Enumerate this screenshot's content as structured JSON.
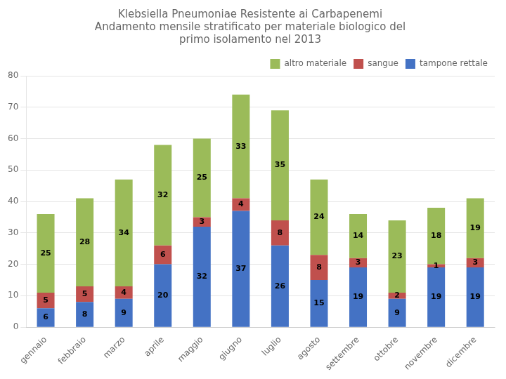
{
  "chart_data": {
    "type": "bar",
    "title": "Klebsiella Pneumoniae Resistente ai Carbapenemi\nAndamento mensile stratificato per materiale biologico del\nprimo isolamento nel 2013",
    "categories": [
      "gennaio",
      "febbraio",
      "marzo",
      "aprile",
      "maggio",
      "giugno",
      "luglio",
      "agosto",
      "settembre",
      "ottobre",
      "novembre",
      "dicembre"
    ],
    "series": [
      {
        "name": "tampone rettale",
        "color": "#4472C4",
        "values": [
          6,
          8,
          9,
          20,
          32,
          37,
          26,
          15,
          19,
          9,
          19,
          19
        ]
      },
      {
        "name": "sangue",
        "color": "#C0504D",
        "values": [
          5,
          5,
          4,
          6,
          3,
          4,
          8,
          8,
          3,
          2,
          1,
          3
        ]
      },
      {
        "name": "altro materiale",
        "color": "#9BBB59",
        "values": [
          25,
          28,
          34,
          32,
          25,
          33,
          35,
          24,
          14,
          23,
          18,
          19
        ]
      }
    ],
    "stacked": true,
    "data_labels": true,
    "ylim": [
      0,
      80
    ],
    "yticks": [
      0,
      10,
      20,
      30,
      40,
      50,
      60,
      70,
      80
    ],
    "grid": true,
    "legend": "upper right"
  }
}
